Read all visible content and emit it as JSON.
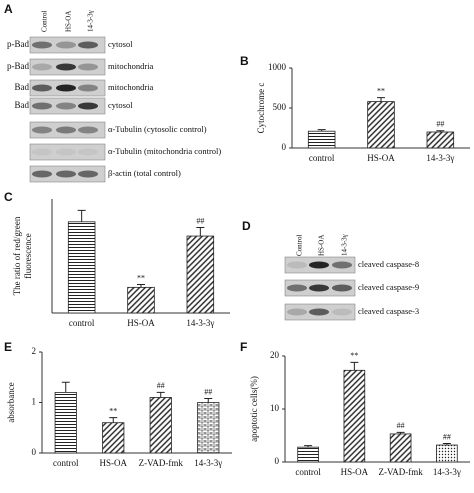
{
  "blots": [
    {
      "panel_label": "A",
      "lanes": [
        "Control",
        "HS-OA",
        "14-3-3γ"
      ],
      "rows": [
        {
          "left": "p-Bad",
          "right": "cytosol"
        },
        {
          "left": "p-Bad",
          "right": "mitochondria"
        },
        {
          "left": "Bad",
          "right": "mitochondria"
        },
        {
          "left": "Bad",
          "right": "cytosol"
        },
        {
          "right": "α-Tubulin (cytosolic control)"
        },
        {
          "right": "α-Tubulin (mitochondria control)"
        },
        {
          "right": "β-actin (total control)"
        }
      ]
    },
    {
      "panel_label": "D",
      "lanes": [
        "Control",
        "HS-OA",
        "14-3-3γ"
      ],
      "rows": [
        {
          "right": "cleaved caspase-8"
        },
        {
          "right": "cleaved caspase-9"
        },
        {
          "right": "cleaved caspase-3"
        }
      ]
    }
  ],
  "chart_data": [
    {
      "type": "bar",
      "panel_label": "B",
      "ylabel": "Cytochrome c",
      "categories": [
        "control",
        "HS-OA",
        "14-3-3γ"
      ],
      "values": [
        210,
        580,
        200
      ],
      "errors": [
        20,
        50,
        15
      ],
      "annotations": [
        null,
        "**",
        "##"
      ],
      "patterns": [
        "horizontal",
        "diagonal",
        "diagonal"
      ],
      "color": "#222222",
      "ylim": [
        0,
        1000
      ],
      "yticks": [
        0,
        500,
        1000
      ]
    },
    {
      "type": "bar",
      "panel_label": "C",
      "ylabel": [
        "The ratio of red/green",
        "fluorescence"
      ],
      "categories": [
        "control",
        "HS-OA",
        "14-3-3γ"
      ],
      "values": [
        3.2,
        0.9,
        2.7
      ],
      "errors": [
        0.4,
        0.1,
        0.3
      ],
      "annotations": [
        null,
        "**",
        "##"
      ],
      "patterns": [
        "horizontal",
        "diagonal",
        "diagonal"
      ],
      "color": "#222222",
      "ylim": [
        0,
        4
      ]
    },
    {
      "type": "bar",
      "panel_label": "E",
      "ylabel": "absorbance",
      "categories": [
        "control",
        "HS-OA",
        "Z-VAD-fmk",
        "14-3-3γ"
      ],
      "values": [
        1.2,
        0.6,
        1.1,
        1.0
      ],
      "errors": [
        0.2,
        0.1,
        0.1,
        0.08
      ],
      "annotations": [
        null,
        "**",
        "##",
        "##"
      ],
      "patterns": [
        "horizontal",
        "diagonal",
        "diagonal",
        "brick"
      ],
      "color": "#222222",
      "ylim": [
        0,
        2
      ],
      "yticks": [
        0,
        1,
        2
      ]
    },
    {
      "type": "bar",
      "panel_label": "F",
      "ylabel": "apoptotic cells(%)",
      "categories": [
        "control",
        "HS-OA",
        "Z-VAD-fmk",
        "14-3-3γ"
      ],
      "values": [
        2.8,
        17.3,
        5.3,
        3.2
      ],
      "errors": [
        0.3,
        1.5,
        0.3,
        0.3
      ],
      "annotations": [
        null,
        "**",
        "##",
        "##"
      ],
      "patterns": [
        "horizontal",
        "diagonal",
        "diagonal",
        "dots"
      ],
      "color": "#222222",
      "ylim": [
        0,
        20
      ],
      "yticks": [
        0,
        10,
        20
      ]
    }
  ]
}
